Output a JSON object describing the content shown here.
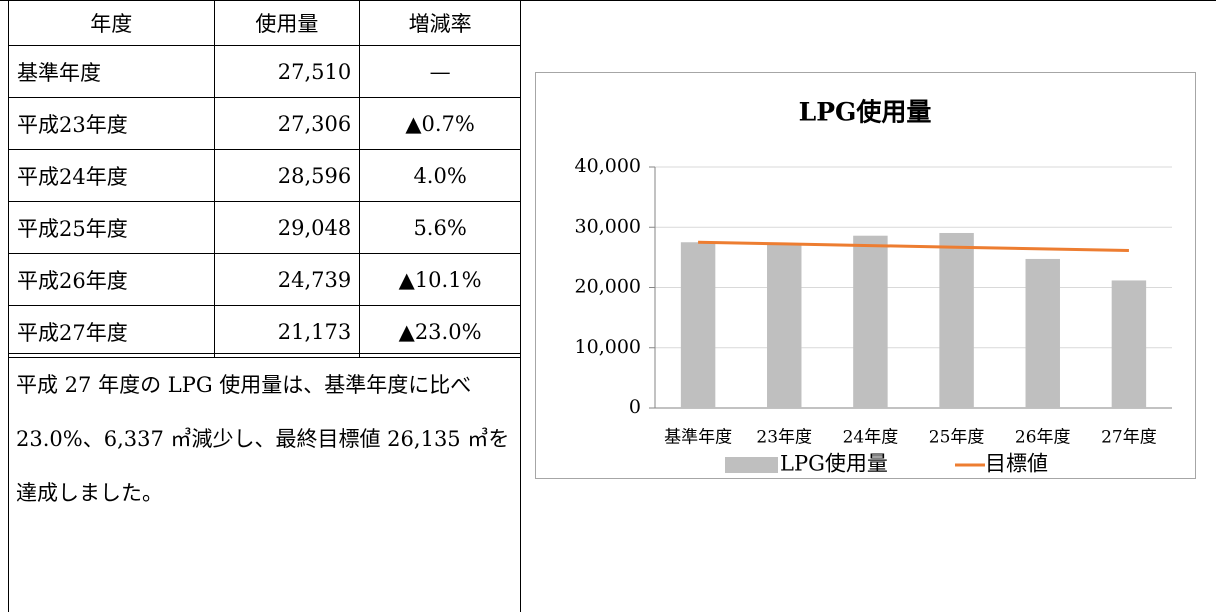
{
  "table": {
    "header": [
      "年度",
      "使用量",
      "増減率"
    ],
    "rows": [
      [
        "基準年度",
        "27,510",
        "—"
      ],
      [
        "平成23年度",
        "27,306",
        "▲0.7%"
      ],
      [
        "平成24年度",
        "28,596",
        "4.0%"
      ],
      [
        "平成25年度",
        "29,048",
        "5.6%"
      ],
      [
        "平成26年度",
        "24,739",
        "▲10.1%"
      ],
      [
        "平成27年度",
        "21,173",
        "▲23.0%"
      ]
    ],
    "note": "平成 27 年度の LPG 使用量は、基準年度に比べ 23.0%、6,337 ㎥減少し、最終目標値 26,135 ㎥を達成しました。"
  },
  "chart_data": {
    "type": "bar",
    "title": "LPG使用量",
    "categories": [
      "基準年度",
      "23年度",
      "24年度",
      "25年度",
      "26年度",
      "27年度"
    ],
    "series": [
      {
        "name": "LPG使用量",
        "type": "bar",
        "color": "#bfbfbf",
        "values": [
          27510,
          27306,
          28596,
          29048,
          24739,
          21173
        ]
      },
      {
        "name": "目標値",
        "type": "line",
        "color": "#ed7d31",
        "values": [
          27510,
          27235,
          26960,
          26685,
          26410,
          26135
        ]
      }
    ],
    "ylim": [
      0,
      40000
    ],
    "yticks": [
      0,
      {
        "value": 10000,
        "label": "10,000"
      },
      {
        "value": 20000,
        "label": "20,000"
      },
      {
        "value": 30000,
        "label": "30,000"
      },
      {
        "value": 40000,
        "label": "40,000"
      }
    ],
    "grid": true,
    "legend": "bottom"
  }
}
